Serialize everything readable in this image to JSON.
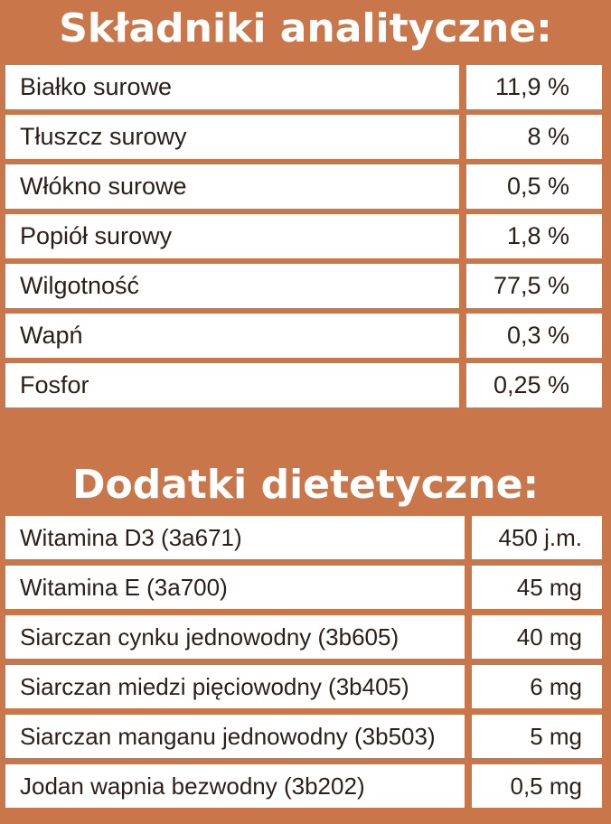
{
  "sections": [
    {
      "title": "Składniki analityczne:",
      "rows": [
        {
          "name": "Białko surowe",
          "value": "11,9 %"
        },
        {
          "name": "Tłuszcz surowy",
          "value": "8 %"
        },
        {
          "name": "Włókno surowe",
          "value": "0,5 %"
        },
        {
          "name": "Popiół surowy",
          "value": "1,8 %"
        },
        {
          "name": "Wilgotność",
          "value": "77,5 %"
        },
        {
          "name": "Wapń",
          "value": "0,3 %"
        },
        {
          "name": "Fosfor",
          "value": "0,25 %"
        }
      ]
    },
    {
      "title": "Dodatki dietetyczne:",
      "rows": [
        {
          "name": "Witamina D3 (3a671)",
          "value": "450 j.m."
        },
        {
          "name": "Witamina E (3a700)",
          "value": "45 mg"
        },
        {
          "name": "Siarczan  cynku jednowodny (3b605)",
          "value": "40 mg"
        },
        {
          "name": "Siarczan  miedzi pięciowodny (3b405)",
          "value": "6 mg"
        },
        {
          "name": "Siarczan  manganu jednowodny (3b503)",
          "value": "5 mg"
        },
        {
          "name": "Jodan wapnia bezwodny (3b202)",
          "value": "0,5 mg"
        }
      ]
    }
  ],
  "colors": {
    "background": "#c8764a",
    "cell": "#ffffff",
    "text": "#2a1f1a",
    "title": "#ffffff"
  }
}
